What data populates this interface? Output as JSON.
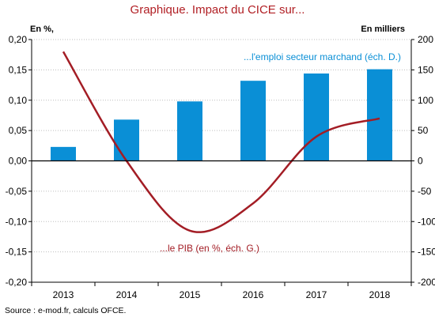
{
  "chart_data": {
    "type": "bar+line",
    "title": "Graphique. Impact du CICE sur...",
    "left_axis_label": "En %,",
    "right_axis_label": "En milliers",
    "categories": [
      "2013",
      "2014",
      "2015",
      "2016",
      "2017",
      "2018"
    ],
    "left_ylim": [
      -0.2,
      0.2
    ],
    "left_ticks": [
      "0,20",
      "0,15",
      "0,10",
      "0,05",
      "0,00",
      "-0,05",
      "-0,10",
      "-0,15",
      "-0,20"
    ],
    "right_ylim": [
      -200,
      200
    ],
    "right_ticks": [
      "200",
      "150",
      "100",
      "50",
      "0",
      "-50",
      "-100",
      "-150",
      "-200"
    ],
    "series": [
      {
        "name": "...l'emploi secteur marchand (ech. D.)",
        "type": "bar",
        "axis": "right",
        "color": "#0a8fd6",
        "values": [
          23,
          68,
          98,
          132,
          144,
          151
        ]
      },
      {
        "name": "...le PIB (en %,  ech. G.)",
        "type": "line",
        "axis": "left",
        "color": "#a31d25",
        "values": [
          0.18,
          0.0,
          -0.115,
          -0.07,
          0.04,
          0.07
        ]
      }
    ],
    "annotations": {
      "bar_series_label": "...l'emploi secteur marchand (éch. D.)",
      "line_series_label": "...le PIB (en %,  éch. G.)"
    },
    "grid": true,
    "source": "Source : e-mod.fr, calculs OFCE."
  }
}
